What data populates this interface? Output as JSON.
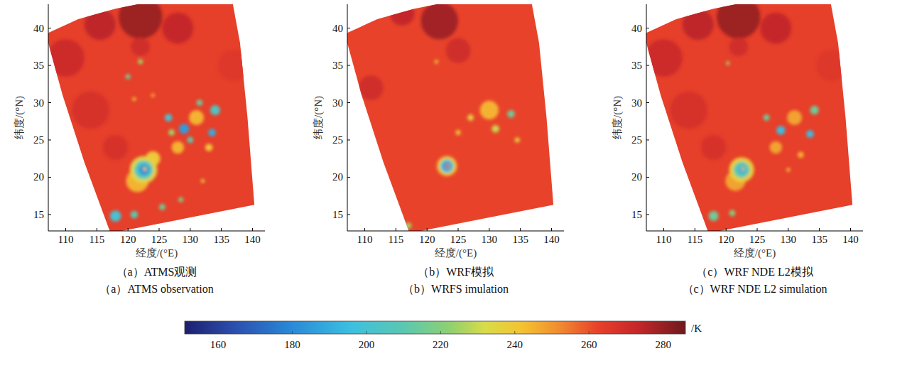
{
  "chart_data": [
    {
      "type": "heatmap",
      "title": "（a）ATMS观测",
      "subtitle": "（a）ATMS observation",
      "x_label": "经度/(°E)",
      "y_label": "纬度/(°N)",
      "xlim": [
        107.2,
        142
      ],
      "ylim": [
        12.8,
        43.2
      ],
      "xticks": [
        110,
        115,
        120,
        125,
        130,
        135,
        140
      ],
      "yticks": [
        15,
        20,
        25,
        30,
        35,
        40
      ],
      "background": 263,
      "swath": {
        "lon": [
          106.8,
          112,
          118,
          124,
          130,
          136.5,
          138,
          139.2,
          140.3,
          117.2,
          113,
          109.5
        ],
        "lat": [
          39.2,
          41.2,
          42.6,
          43.6,
          44.3,
          44.8,
          38,
          28,
          16.3,
          12.5,
          22,
          31
        ]
      },
      "features": [
        {
          "lon": 122,
          "lat": 41.5,
          "radius": 3.5,
          "value": 279
        },
        {
          "lon": 115.5,
          "lat": 40.5,
          "radius": 2.5,
          "value": 274
        },
        {
          "lon": 128,
          "lat": 40,
          "radius": 2.5,
          "value": 273
        },
        {
          "lon": 110,
          "lat": 36,
          "radius": 3,
          "value": 271
        },
        {
          "lon": 114,
          "lat": 29,
          "radius": 3,
          "value": 268
        },
        {
          "lon": 122,
          "lat": 37.5,
          "radius": 1.5,
          "value": 270
        },
        {
          "lon": 118,
          "lat": 24,
          "radius": 2,
          "value": 268
        },
        {
          "lon": 137,
          "lat": 35,
          "radius": 2.5,
          "value": 266
        },
        {
          "lon": 131,
          "lat": 28,
          "radius": 1.2,
          "value": 245
        },
        {
          "lon": 128,
          "lat": 24,
          "radius": 1,
          "value": 245
        },
        {
          "lon": 133,
          "lat": 24,
          "radius": 0.6,
          "value": 240
        },
        {
          "lon": 121.5,
          "lat": 19.5,
          "radius": 1.8,
          "value": 245
        },
        {
          "lon": 124,
          "lat": 22.5,
          "radius": 1.2,
          "value": 240
        },
        {
          "lon": 122.5,
          "lat": 21,
          "radius": 2.2,
          "value": 235
        },
        {
          "lon": 122.5,
          "lat": 21,
          "radius": 1.5,
          "value": 205
        },
        {
          "lon": 122.6,
          "lat": 21,
          "radius": 0.8,
          "value": 180
        },
        {
          "lon": 122.7,
          "lat": 21.1,
          "radius": 0.3,
          "value": 240
        },
        {
          "lon": 129,
          "lat": 26.5,
          "radius": 0.8,
          "value": 185
        },
        {
          "lon": 126.5,
          "lat": 28,
          "radius": 0.6,
          "value": 200
        },
        {
          "lon": 133.5,
          "lat": 26,
          "radius": 0.6,
          "value": 190
        },
        {
          "lon": 134,
          "lat": 29,
          "radius": 0.8,
          "value": 205
        },
        {
          "lon": 130,
          "lat": 25,
          "radius": 0.5,
          "value": 210
        },
        {
          "lon": 131.5,
          "lat": 30,
          "radius": 0.5,
          "value": 215
        },
        {
          "lon": 127,
          "lat": 26,
          "radius": 0.5,
          "value": 225
        },
        {
          "lon": 120,
          "lat": 33.5,
          "radius": 0.4,
          "value": 215
        },
        {
          "lon": 122,
          "lat": 35.5,
          "radius": 0.4,
          "value": 225
        },
        {
          "lon": 118,
          "lat": 14.8,
          "radius": 0.9,
          "value": 200
        },
        {
          "lon": 121,
          "lat": 15,
          "radius": 0.6,
          "value": 210
        },
        {
          "lon": 125.5,
          "lat": 16,
          "radius": 0.5,
          "value": 215
        },
        {
          "lon": 128.5,
          "lat": 17,
          "radius": 0.4,
          "value": 220
        },
        {
          "lon": 132,
          "lat": 19.5,
          "radius": 0.3,
          "value": 235
        },
        {
          "lon": 121,
          "lat": 30.5,
          "radius": 0.3,
          "value": 240
        },
        {
          "lon": 124,
          "lat": 31,
          "radius": 0.3,
          "value": 245
        }
      ]
    },
    {
      "type": "heatmap",
      "title": "（b）WRF模拟",
      "subtitle": "（b）WRFS imulation",
      "x_label": "经度/(°E)",
      "y_label": "纬度/(°N)",
      "xlim": [
        107.2,
        142
      ],
      "ylim": [
        12.8,
        43.2
      ],
      "xticks": [
        110,
        115,
        120,
        125,
        130,
        135,
        140
      ],
      "yticks": [
        15,
        20,
        25,
        30,
        35,
        40
      ],
      "background": 262,
      "swath": {
        "lon": [
          106.8,
          112,
          118,
          124,
          130,
          136.5,
          138,
          139.2,
          140.3,
          117.2,
          113,
          109.5
        ],
        "lat": [
          39.2,
          41.2,
          42.6,
          43.6,
          44.3,
          44.8,
          38,
          28,
          16.3,
          12.5,
          22,
          31
        ]
      },
      "features": [
        {
          "lon": 122,
          "lat": 41,
          "radius": 3,
          "value": 278
        },
        {
          "lon": 116,
          "lat": 42,
          "radius": 2,
          "value": 273
        },
        {
          "lon": 111,
          "lat": 32,
          "radius": 2,
          "value": 270
        },
        {
          "lon": 125,
          "lat": 37,
          "radius": 2,
          "value": 270
        },
        {
          "lon": 130,
          "lat": 29,
          "radius": 1.5,
          "value": 245
        },
        {
          "lon": 133.5,
          "lat": 28.5,
          "radius": 0.6,
          "value": 215
        },
        {
          "lon": 131,
          "lat": 26.5,
          "radius": 0.6,
          "value": 230
        },
        {
          "lon": 127,
          "lat": 28,
          "radius": 0.5,
          "value": 235
        },
        {
          "lon": 125,
          "lat": 26,
          "radius": 0.4,
          "value": 240
        },
        {
          "lon": 134.5,
          "lat": 25,
          "radius": 0.4,
          "value": 235
        },
        {
          "lon": 121.5,
          "lat": 35.5,
          "radius": 0.3,
          "value": 240
        },
        {
          "lon": 117,
          "lat": 13.5,
          "radius": 0.5,
          "value": 225
        },
        {
          "lon": 123.2,
          "lat": 21.5,
          "radius": 1.6,
          "value": 240
        },
        {
          "lon": 123.2,
          "lat": 21.5,
          "radius": 1.1,
          "value": 200
        },
        {
          "lon": 123.2,
          "lat": 21.5,
          "radius": 0.6,
          "value": 180
        },
        {
          "lon": 123.3,
          "lat": 21.5,
          "radius": 0.3,
          "value": 255
        }
      ]
    },
    {
      "type": "heatmap",
      "title": "（c）WRF NDE L2模拟",
      "subtitle": "（c）WRF NDE L2 simulation",
      "x_label": "经度/(°E)",
      "y_label": "纬度/(°N)",
      "xlim": [
        107.2,
        142
      ],
      "ylim": [
        12.8,
        43.2
      ],
      "xticks": [
        110,
        115,
        120,
        125,
        130,
        135,
        140
      ],
      "yticks": [
        15,
        20,
        25,
        30,
        35,
        40
      ],
      "background": 263,
      "swath": {
        "lon": [
          106.8,
          112,
          118,
          124,
          130,
          136.5,
          138,
          139.2,
          140.3,
          117.2,
          113,
          109.5
        ],
        "lat": [
          39.2,
          41.2,
          42.6,
          43.6,
          44.3,
          44.8,
          38,
          28,
          16.3,
          12.5,
          22,
          31
        ]
      },
      "features": [
        {
          "lon": 122,
          "lat": 41.5,
          "radius": 3.5,
          "value": 279
        },
        {
          "lon": 115.5,
          "lat": 40.5,
          "radius": 2.5,
          "value": 274
        },
        {
          "lon": 128,
          "lat": 40,
          "radius": 2.5,
          "value": 273
        },
        {
          "lon": 110,
          "lat": 36,
          "radius": 3,
          "value": 271
        },
        {
          "lon": 114,
          "lat": 29,
          "radius": 3,
          "value": 268
        },
        {
          "lon": 122,
          "lat": 37.5,
          "radius": 1.5,
          "value": 270
        },
        {
          "lon": 118,
          "lat": 24,
          "radius": 2,
          "value": 268
        },
        {
          "lon": 137,
          "lat": 35,
          "radius": 2.5,
          "value": 266
        },
        {
          "lon": 131,
          "lat": 28,
          "radius": 1.2,
          "value": 248
        },
        {
          "lon": 128,
          "lat": 24,
          "radius": 1,
          "value": 248
        },
        {
          "lon": 132,
          "lat": 23,
          "radius": 0.5,
          "value": 245
        },
        {
          "lon": 121.5,
          "lat": 19.5,
          "radius": 1.6,
          "value": 248
        },
        {
          "lon": 122.5,
          "lat": 21,
          "radius": 2,
          "value": 238
        },
        {
          "lon": 122.5,
          "lat": 21,
          "radius": 1.3,
          "value": 210
        },
        {
          "lon": 122.6,
          "lat": 21,
          "radius": 0.6,
          "value": 190
        },
        {
          "lon": 122.7,
          "lat": 21.1,
          "radius": 0.25,
          "value": 245
        },
        {
          "lon": 128.8,
          "lat": 26.3,
          "radius": 0.7,
          "value": 195
        },
        {
          "lon": 133.5,
          "lat": 25.8,
          "radius": 0.6,
          "value": 195
        },
        {
          "lon": 134.2,
          "lat": 29,
          "radius": 0.7,
          "value": 215
        },
        {
          "lon": 126.5,
          "lat": 28,
          "radius": 0.5,
          "value": 215
        },
        {
          "lon": 120.3,
          "lat": 35.3,
          "radius": 0.3,
          "value": 225
        },
        {
          "lon": 118,
          "lat": 14.8,
          "radius": 0.8,
          "value": 215
        },
        {
          "lon": 121,
          "lat": 15.2,
          "radius": 0.5,
          "value": 220
        },
        {
          "lon": 130,
          "lat": 21,
          "radius": 0.3,
          "value": 240
        }
      ]
    }
  ],
  "colorbar": {
    "range": [
      151,
      286
    ],
    "ticks": [
      160,
      180,
      200,
      220,
      240,
      260,
      280
    ],
    "label": "/K"
  }
}
